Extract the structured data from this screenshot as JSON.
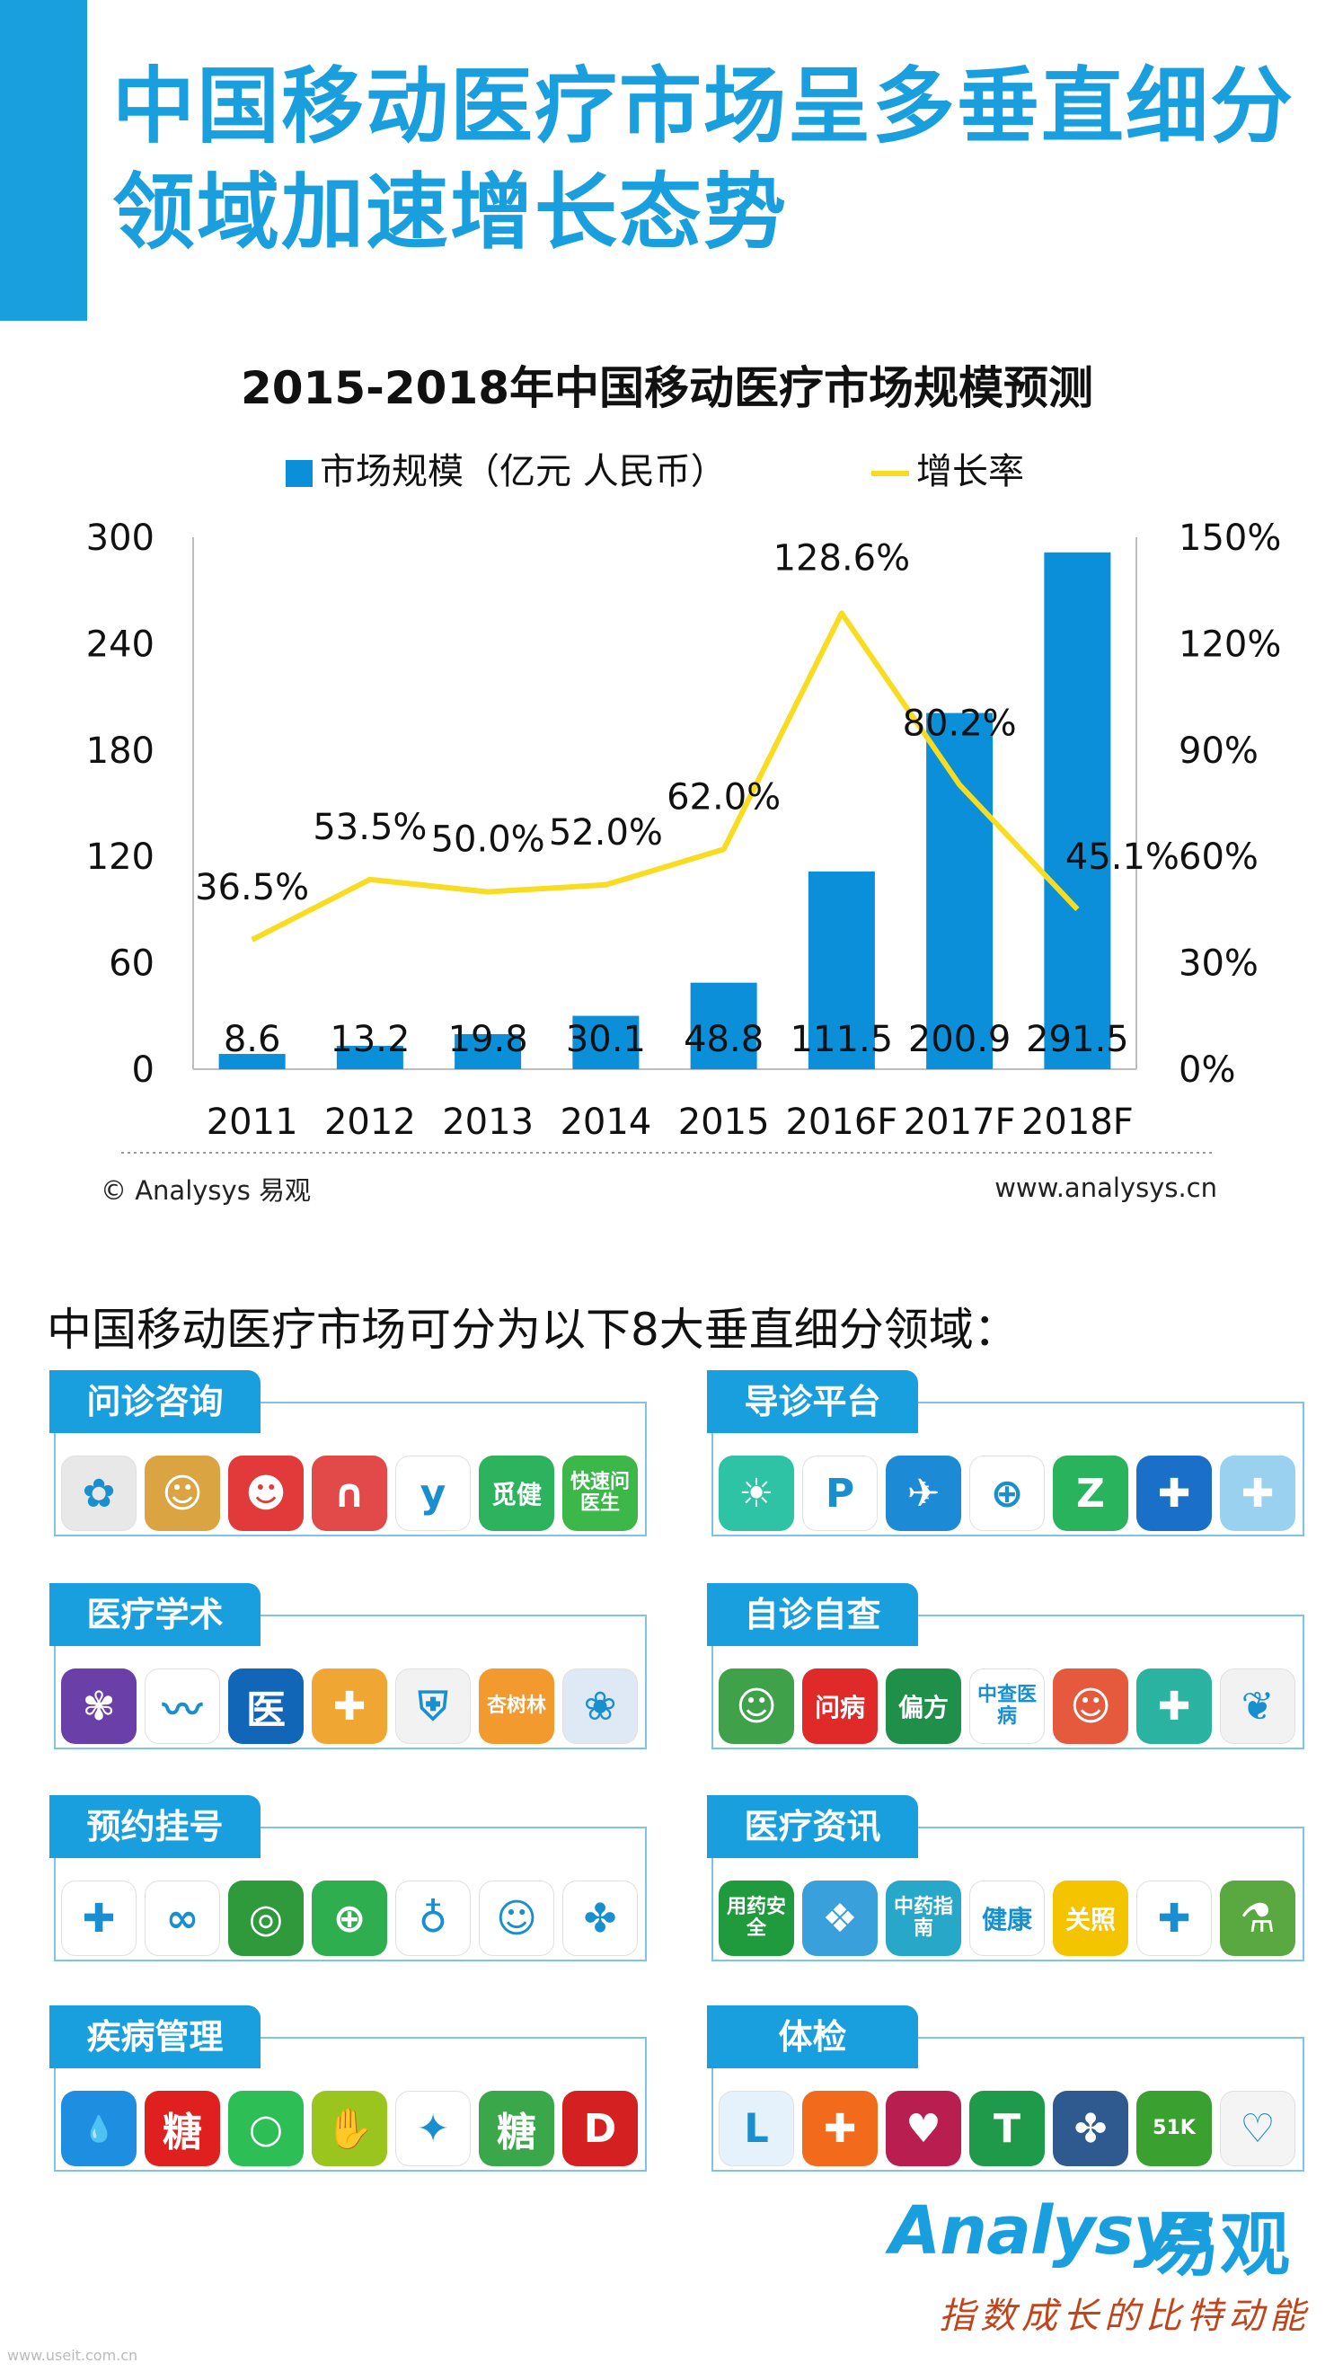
{
  "title": "中国移动医疗市场呈多垂直细分领域加速增长态势",
  "chart_data": {
    "type": "bar+line",
    "title": "2015-2018年中国移动医疗市场规模预测",
    "categories": [
      "2011",
      "2012",
      "2013",
      "2014",
      "2015",
      "2016F",
      "2017F",
      "2018F"
    ],
    "series": [
      {
        "name": "市场规模（亿元 人民币）",
        "type": "bar",
        "axis": "left",
        "values": [
          8.6,
          13.2,
          19.8,
          30.1,
          48.8,
          111.5,
          200.9,
          291.5
        ],
        "labels": [
          "8.6",
          "13.2",
          "19.8",
          "30.1",
          "48.8",
          "111.5",
          "200.9",
          "291.5"
        ]
      },
      {
        "name": "增长率",
        "type": "line",
        "axis": "right",
        "values": [
          36.5,
          53.5,
          50.0,
          52.0,
          62.0,
          128.6,
          80.2,
          45.1
        ],
        "labels": [
          "36.5%",
          "53.5%",
          "50.0%",
          "52.0%",
          "62.0%",
          "128.6%",
          "80.2%",
          "45.1%"
        ]
      }
    ],
    "left_axis": {
      "ylim": [
        0,
        300
      ],
      "ticks": [
        "0",
        "60",
        "120",
        "180",
        "240",
        "300"
      ]
    },
    "right_axis": {
      "ylim": [
        0,
        150
      ],
      "ticks": [
        "0%",
        "30%",
        "60%",
        "90%",
        "120%",
        "150%"
      ]
    },
    "legend_position": "top-center",
    "colors": {
      "bar": "#0a8fd8",
      "line": "#f7dc1f"
    }
  },
  "copyright": "© Analysys 易观",
  "website": "www.analysys.cn",
  "intro": "中国移动医疗市场可分为以下8大垂直细分领域：",
  "segments": [
    {
      "label": "问诊咨询",
      "icons": [
        {
          "name": "flower-app-icon",
          "color": "#e8e8e8",
          "glyph": "✿"
        },
        {
          "name": "doctor-cartoon-app-icon",
          "color": "#d9a441",
          "glyph": "☺"
        },
        {
          "name": "chat-bubble-app-icon",
          "color": "#e23a3a",
          "glyph": "☻"
        },
        {
          "name": "arch-app-icon",
          "color": "#e24a4a",
          "glyph": "∩"
        },
        {
          "name": "y-letter-app-icon",
          "color": "#ffffff",
          "glyph": "y"
        },
        {
          "name": "mijian-app-icon",
          "color": "#2db35e",
          "glyph": "觅健"
        },
        {
          "name": "kuaisu-wenyisheng-app-icon",
          "color": "#3cb84a",
          "glyph": "快速问医生"
        }
      ]
    },
    {
      "label": "导诊平台",
      "icons": [
        {
          "name": "sun-sprout-app-icon",
          "color": "#2ec3a5",
          "glyph": "☀"
        },
        {
          "name": "p-plus-app-icon",
          "color": "#ffffff",
          "glyph": "P"
        },
        {
          "name": "bird-app-icon",
          "color": "#1d8ad6",
          "glyph": "✈"
        },
        {
          "name": "hospital-seal-app-icon",
          "color": "#ffffff",
          "glyph": "⊕"
        },
        {
          "name": "z-arrow-app-icon",
          "color": "#28b35c",
          "glyph": "Z"
        },
        {
          "name": "hospital-cross-app-icon",
          "color": "#1a6fc9",
          "glyph": "✚"
        },
        {
          "name": "cross-hand-app-icon",
          "color": "#9ad1ef",
          "glyph": "✚"
        }
      ]
    },
    {
      "label": "医疗学术",
      "icons": [
        {
          "name": "butterfly-app-icon",
          "color": "#6b3fa8",
          "glyph": "✾"
        },
        {
          "name": "mountain-wave-app-icon",
          "color": "#ffffff",
          "glyph": "〰"
        },
        {
          "name": "yi-character-app-icon",
          "color": "#1266b8",
          "glyph": "医"
        },
        {
          "name": "orange-cross-app-icon",
          "color": "#f0a632",
          "glyph": "✚"
        },
        {
          "name": "shield-emblem-app-icon",
          "color": "#f2f2f2",
          "glyph": "⛨"
        },
        {
          "name": "xingshulin-app-icon",
          "color": "#f29a2e",
          "glyph": "杏树林"
        },
        {
          "name": "blue-heart-app-icon",
          "color": "#dfe9f5",
          "glyph": "❀"
        }
      ]
    },
    {
      "label": "自诊自查",
      "icons": [
        {
          "name": "doctor-avatar-app-icon",
          "color": "#3fa14a",
          "glyph": "☺"
        },
        {
          "name": "wenbing-app-icon",
          "color": "#e02a2a",
          "glyph": "问病"
        },
        {
          "name": "pianfang-app-icon",
          "color": "#1f8f4a",
          "glyph": "偏方"
        },
        {
          "name": "zhongyi-chabing-app-icon",
          "color": "#ffffff",
          "glyph": "中查医病"
        },
        {
          "name": "cartoon-kid-app-icon",
          "color": "#e55a3c",
          "glyph": "☺"
        },
        {
          "name": "medical-kit-app-icon",
          "color": "#29b3a0",
          "glyph": "✚"
        },
        {
          "name": "leaf-cross-app-icon",
          "color": "#f2f2f2",
          "glyph": "❦"
        }
      ]
    },
    {
      "label": "预约挂号",
      "icons": [
        {
          "name": "teal-cross-app-icon",
          "color": "#ffffff",
          "glyph": "✚"
        },
        {
          "name": "infinity-heart-app-icon",
          "color": "#ffffff",
          "glyph": "∞"
        },
        {
          "name": "green-swirl-app-icon",
          "color": "#2f9a3c",
          "glyph": "◎"
        },
        {
          "name": "green-ring-plus-app-icon",
          "color": "#2fae4f",
          "glyph": "⊕"
        },
        {
          "name": "stethoscope-app-icon",
          "color": "#ffffff",
          "glyph": "♁"
        },
        {
          "name": "green-apple-app-icon",
          "color": "#ffffff",
          "glyph": "☺"
        },
        {
          "name": "color-petals-app-icon",
          "color": "#ffffff",
          "glyph": "✤"
        }
      ]
    },
    {
      "label": "医疗资讯",
      "icons": [
        {
          "name": "yongyao-anquan-app-icon",
          "color": "#1f9a3c",
          "glyph": "用药安全"
        },
        {
          "name": "blue-drop-app-icon",
          "color": "#3aa0dc",
          "glyph": "❖"
        },
        {
          "name": "zhongyao-zhinan-app-icon",
          "color": "#28a8c8",
          "glyph": "中药指南"
        },
        {
          "name": "jiankang-39-app-icon",
          "color": "#ffffff",
          "glyph": "健康"
        },
        {
          "name": "guanzhao-app-icon",
          "color": "#f5c400",
          "glyph": "关照"
        },
        {
          "name": "cross-diamond-app-icon",
          "color": "#ffffff",
          "glyph": "✚"
        },
        {
          "name": "mortar-pestle-app-icon",
          "color": "#5aa840",
          "glyph": "⚗"
        }
      ]
    },
    {
      "label": "疾病管理",
      "icons": [
        {
          "name": "blue-drop-plus-app-icon",
          "color": "#1e8ee0",
          "glyph": "💧"
        },
        {
          "name": "tang-red-app-icon",
          "color": "#e01f1f",
          "glyph": "糖"
        },
        {
          "name": "green-circle-app-icon",
          "color": "#2dbf55",
          "glyph": "○"
        },
        {
          "name": "hand-plus-app-icon",
          "color": "#9ac41e",
          "glyph": "✋"
        },
        {
          "name": "colorful-fan-app-icon",
          "color": "#ffffff",
          "glyph": "✦"
        },
        {
          "name": "tang-green-app-icon",
          "color": "#3aa84a",
          "glyph": "糖"
        },
        {
          "name": "d-nurse-app-icon",
          "color": "#d42020",
          "glyph": "D"
        }
      ]
    },
    {
      "label": "体检",
      "icons": [
        {
          "name": "blue-curve-app-icon",
          "color": "#e6f2fb",
          "glyph": "ᒪ"
        },
        {
          "name": "orange-cross-circle-app-icon",
          "color": "#f26a1b",
          "glyph": "✚"
        },
        {
          "name": "health100-app-icon",
          "color": "#b81e4f",
          "glyph": "♥"
        },
        {
          "name": "green-t-app-icon",
          "color": "#1f9a4a",
          "glyph": "T"
        },
        {
          "name": "green-clover-app-icon",
          "color": "#2f5a8f",
          "glyph": "✤"
        },
        {
          "name": "51k-app-icon",
          "color": "#3aa030",
          "glyph": "51K"
        },
        {
          "name": "heart-check-app-icon",
          "color": "#f4f4f4",
          "glyph": "♡"
        }
      ]
    }
  ],
  "brand": {
    "latin": "Analysys",
    "cn": "易观",
    "slogan": "指数成长的比特动能"
  },
  "source_watermark": "www.useit.com.cn"
}
